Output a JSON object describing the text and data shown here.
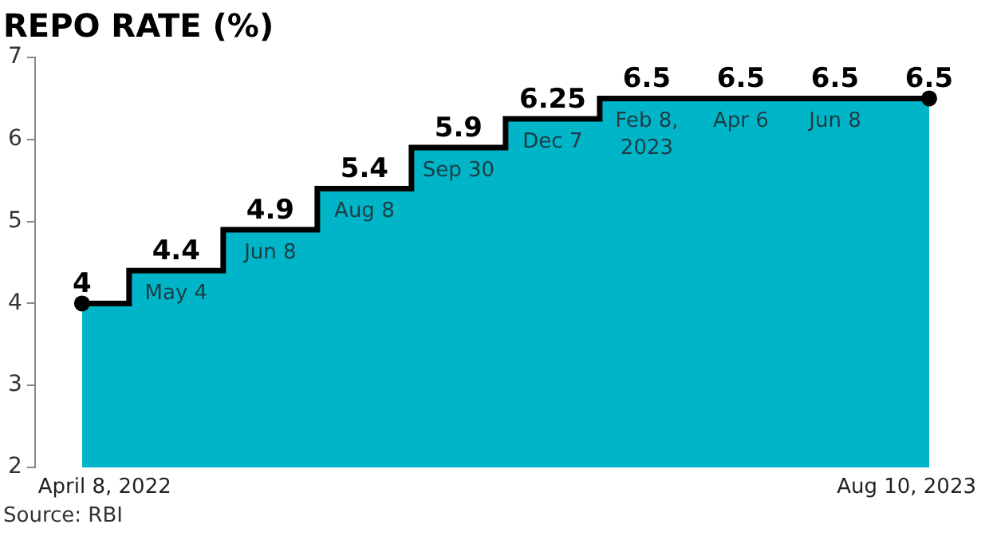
{
  "chart_data": {
    "type": "area",
    "title": "REPO RATE (%)",
    "categories": [
      "April 8, 2022",
      "May 4",
      "Jun 8",
      "Aug 8",
      "Sep 30",
      "Dec 7",
      "Feb 8, 2023",
      "Apr 6",
      "Jun 8",
      "Aug 10, 2023"
    ],
    "series": [
      {
        "color": "#00b5c8",
        "values": [
          4,
          4.4,
          4.9,
          5.4,
          5.9,
          6.25,
          6.5,
          6.5,
          6.5,
          6.5
        ]
      },
      {
        "type": "step",
        "color": "#000000",
        "values": [
          4,
          4.4,
          4.9,
          5.4,
          5.9,
          6.25,
          6.5,
          6.5,
          6.5,
          6.5
        ],
        "value_labels": [
          "4",
          "4.4",
          "4.9",
          "5.4",
          "5.9",
          "6.25",
          "6.5",
          "6.5",
          "6.5",
          "6.5"
        ]
      },
      {
        "type": "scatter",
        "color": "#000000",
        "x": [
          "April 8, 2022",
          "Aug 10, 2023"
        ],
        "values": [
          4,
          6.5
        ],
        "marker": "circle"
      }
    ],
    "ylim": [
      2,
      7
    ],
    "yticks": [
      2,
      3,
      4,
      5,
      6,
      7
    ],
    "legend": false,
    "annotations": [
      "Source: RBI"
    ]
  }
}
